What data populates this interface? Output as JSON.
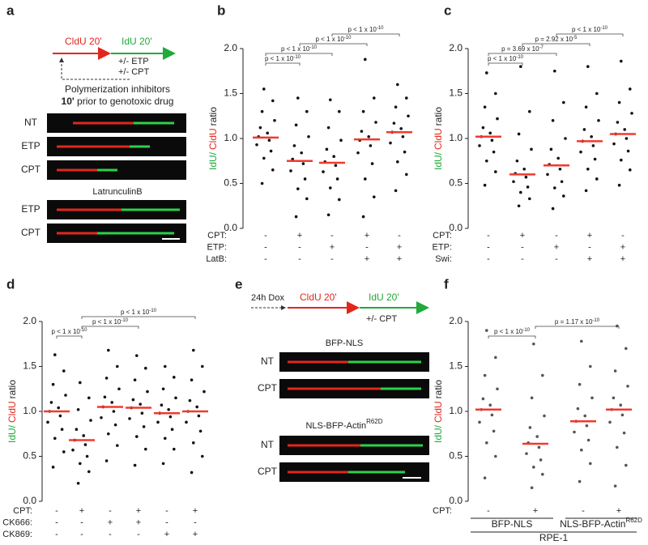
{
  "panel_a": {
    "label": "a",
    "steps": [
      "CldU 20'",
      "IdU 20'"
    ],
    "treatments": [
      "+/- ETP",
      "+/- CPT"
    ],
    "note_line1": "Polymerization inhibitors",
    "note_bold": "10'",
    "note_rest": " prior to genotoxic drug",
    "rows": [
      "NT",
      "ETP",
      "CPT"
    ],
    "subtitle": "LatrunculinB",
    "rows2": [
      "ETP",
      "CPT"
    ]
  },
  "panel_e": {
    "label": "e",
    "dox": "24h Dox",
    "steps": [
      "CldU 20'",
      "IdU 20'"
    ],
    "treatment": "+/- CPT",
    "group1": {
      "title": "BFP-NLS",
      "rows": [
        "NT",
        "CPT"
      ]
    },
    "group2": {
      "title": "NLS-BFP-Actin",
      "sup": "R62D",
      "rows": [
        "NT",
        "CPT"
      ]
    }
  },
  "chart_data": [
    {
      "type": "strip",
      "label": "b",
      "ylabel": [
        "IdU/",
        "CldU",
        "ratio"
      ],
      "ylabel_colors": [
        "#1faa3a",
        "#e3261c",
        "#222222"
      ],
      "median_color": "#f03a2e",
      "point_color": "#111111",
      "ylim": [
        0,
        2
      ],
      "yticks": [
        {
          "value": 0,
          "label": "0.0"
        },
        0.5,
        {
          "value": 1,
          "label": "1.0"
        },
        1.5,
        {
          "value": 2,
          "label": "2.0"
        }
      ],
      "groups": [
        {
          "median": 1.01,
          "points": [
            1.55,
            1.42,
            1.3,
            1.2,
            1.12,
            1.06,
            1.02,
            0.98,
            0.93,
            0.86,
            0.78,
            0.65,
            0.5
          ]
        },
        {
          "median": 0.75,
          "points": [
            1.45,
            1.3,
            1.15,
            1.02,
            0.92,
            0.84,
            0.77,
            0.72,
            0.64,
            0.55,
            0.44,
            0.33,
            0.13
          ]
        },
        {
          "median": 0.73,
          "points": [
            1.43,
            1.3,
            1.12,
            0.98,
            0.88,
            0.8,
            0.74,
            0.7,
            0.63,
            0.55,
            0.45,
            0.32,
            0.15
          ]
        },
        {
          "median": 0.99,
          "points": [
            1.88,
            1.45,
            1.3,
            1.18,
            1.08,
            1.02,
            0.98,
            0.92,
            0.84,
            0.72,
            0.55,
            0.35,
            0.13
          ]
        },
        {
          "median": 1.07,
          "points": [
            1.6,
            1.45,
            1.35,
            1.25,
            1.17,
            1.11,
            1.07,
            1.02,
            0.95,
            0.85,
            0.74,
            0.6,
            0.42
          ]
        }
      ],
      "conditions": [
        {
          "label": "CPT:",
          "values": [
            "-",
            "+",
            "-",
            "+",
            "-"
          ]
        },
        {
          "label": "ETP:",
          "values": [
            "-",
            "-",
            "+",
            "-",
            "+"
          ]
        },
        {
          "label": "LatB:",
          "values": [
            "-",
            "-",
            "-",
            "+",
            "+"
          ]
        }
      ],
      "brackets": [
        {
          "from": 0,
          "to": 1,
          "text": "p < 1 x 10",
          "exp": "-10"
        },
        {
          "from": 0,
          "to": 2,
          "text": "p < 1 x 10",
          "exp": "-10"
        },
        {
          "from": 1,
          "to": 3,
          "text": "p < 1 x 10",
          "exp": "-10"
        },
        {
          "from": 2,
          "to": 4,
          "text": "p < 1 x 10",
          "exp": "-10"
        }
      ]
    },
    {
      "type": "strip",
      "label": "c",
      "ylabel": [
        "IdU/",
        "CldU",
        "ratio"
      ],
      "ylabel_colors": [
        "#1faa3a",
        "#e3261c",
        "#222222"
      ],
      "median_color": "#f03a2e",
      "point_color": "#111111",
      "ylim": [
        0,
        2
      ],
      "yticks": [
        {
          "value": 0,
          "label": "0.0"
        },
        0.5,
        {
          "value": 1,
          "label": "1.0"
        },
        1.5,
        {
          "value": 2,
          "label": "2.0"
        }
      ],
      "groups": [
        {
          "median": 1.02,
          "points": [
            1.73,
            1.5,
            1.35,
            1.22,
            1.12,
            1.06,
            1.02,
            0.98,
            0.92,
            0.85,
            0.75,
            0.63,
            0.48
          ]
        },
        {
          "median": 0.6,
          "points": [
            1.8,
            1.3,
            1.05,
            0.88,
            0.75,
            0.66,
            0.61,
            0.57,
            0.52,
            0.46,
            0.4,
            0.33,
            0.25
          ]
        },
        {
          "median": 0.7,
          "points": [
            1.75,
            1.4,
            1.2,
            1.0,
            0.88,
            0.78,
            0.71,
            0.66,
            0.6,
            0.52,
            0.45,
            0.36,
            0.22
          ]
        },
        {
          "median": 0.97,
          "points": [
            1.8,
            1.5,
            1.35,
            1.2,
            1.1,
            1.02,
            0.97,
            0.92,
            0.85,
            0.77,
            0.66,
            0.55,
            0.42
          ]
        },
        {
          "median": 1.05,
          "points": [
            1.86,
            1.55,
            1.4,
            1.28,
            1.18,
            1.1,
            1.05,
            1.0,
            0.94,
            0.86,
            0.76,
            0.65,
            0.48
          ]
        }
      ],
      "conditions": [
        {
          "label": "CPT:",
          "values": [
            "-",
            "+",
            "-",
            "+",
            "-"
          ]
        },
        {
          "label": "ETP:",
          "values": [
            "-",
            "-",
            "+",
            "-",
            "+"
          ]
        },
        {
          "label": "Swi:",
          "values": [
            "-",
            "-",
            "-",
            "+",
            "+"
          ]
        }
      ],
      "brackets": [
        {
          "from": 0,
          "to": 1,
          "text": "p < 1 x 10",
          "exp": "-10"
        },
        {
          "from": 0,
          "to": 2,
          "text": "p = 3.69 x 10",
          "exp": "-7"
        },
        {
          "from": 1,
          "to": 3,
          "text": "p = 2.92 x 10",
          "exp": "-5"
        },
        {
          "from": 2,
          "to": 4,
          "text": "p < 1 x 10",
          "exp": "-10"
        }
      ]
    },
    {
      "type": "strip",
      "label": "d",
      "ylabel": [
        "IdU/",
        "CldU",
        "ratio"
      ],
      "ylabel_colors": [
        "#1faa3a",
        "#e3261c",
        "#222222"
      ],
      "median_color": "#f03a2e",
      "point_color": "#111111",
      "ylim": [
        0,
        2
      ],
      "yticks": [
        {
          "value": 0,
          "label": "0.0"
        },
        0.5,
        {
          "value": 1,
          "label": "1.0"
        },
        1.5,
        {
          "value": 2,
          "label": "2.0"
        }
      ],
      "groups": [
        {
          "median": 1.0,
          "points": [
            1.63,
            1.45,
            1.3,
            1.18,
            1.1,
            1.04,
            1.0,
            0.95,
            0.88,
            0.8,
            0.7,
            0.55,
            0.38
          ]
        },
        {
          "median": 0.68,
          "points": [
            1.32,
            1.15,
            1.02,
            0.9,
            0.8,
            0.73,
            0.68,
            0.63,
            0.57,
            0.5,
            0.42,
            0.33,
            0.2
          ]
        },
        {
          "median": 1.05,
          "points": [
            1.68,
            1.5,
            1.37,
            1.25,
            1.16,
            1.1,
            1.05,
            1.0,
            0.93,
            0.85,
            0.75,
            0.62,
            0.45
          ]
        },
        {
          "median": 1.04,
          "points": [
            1.62,
            1.48,
            1.35,
            1.22,
            1.13,
            1.08,
            1.04,
            0.98,
            0.92,
            0.83,
            0.72,
            0.58,
            0.4
          ]
        },
        {
          "median": 0.98,
          "points": [
            1.5,
            1.38,
            1.25,
            1.15,
            1.07,
            1.02,
            0.98,
            0.94,
            0.88,
            0.8,
            0.7,
            0.58,
            0.42
          ]
        },
        {
          "median": 1.0,
          "points": [
            1.68,
            1.5,
            1.35,
            1.22,
            1.12,
            1.05,
            1.0,
            0.95,
            0.88,
            0.78,
            0.65,
            0.5,
            0.32
          ]
        }
      ],
      "conditions": [
        {
          "label": "CPT:",
          "values": [
            "-",
            "+",
            "-",
            "+",
            "-",
            "+"
          ]
        },
        {
          "label": "CK666:",
          "values": [
            "-",
            "-",
            "+",
            "+",
            "-",
            "-"
          ]
        },
        {
          "label": "CK869:",
          "values": [
            "-",
            "-",
            "-",
            "-",
            "+",
            "+"
          ]
        }
      ],
      "brackets": [
        {
          "from": 0,
          "to": 1,
          "text": "p < 1 x 10",
          "exp": "-10"
        },
        {
          "from": 1,
          "to": 3,
          "text": "p < 1 x 10",
          "exp": "-10"
        },
        {
          "from": 1,
          "to": 5,
          "text": "p < 1 x 10",
          "exp": "-10"
        }
      ]
    },
    {
      "type": "strip",
      "label": "f",
      "ylabel": [
        "IdU/",
        "CldU",
        "ratio"
      ],
      "ylabel_colors": [
        "#1faa3a",
        "#e3261c",
        "#222222"
      ],
      "median_color": "#f03a2e",
      "point_color": "#555555",
      "ylim": [
        0,
        2
      ],
      "yticks": [
        {
          "value": 0,
          "label": "0.0"
        },
        0.5,
        {
          "value": 1,
          "label": "1.0"
        },
        1.5,
        {
          "value": 2,
          "label": "2.0"
        }
      ],
      "groups": [
        {
          "median": 1.02,
          "points": [
            1.9,
            1.6,
            1.4,
            1.25,
            1.14,
            1.07,
            1.02,
            0.96,
            0.88,
            0.78,
            0.65,
            0.5,
            0.26
          ]
        },
        {
          "median": 0.64,
          "points": [
            1.75,
            1.4,
            1.15,
            0.95,
            0.82,
            0.72,
            0.65,
            0.6,
            0.53,
            0.46,
            0.38,
            0.3,
            0.15
          ]
        },
        {
          "median": 0.89,
          "points": [
            1.78,
            1.5,
            1.3,
            1.15,
            1.03,
            0.95,
            0.89,
            0.84,
            0.77,
            0.68,
            0.57,
            0.42,
            0.22
          ]
        },
        {
          "median": 1.02,
          "points": [
            1.95,
            1.7,
            1.45,
            1.28,
            1.15,
            1.07,
            1.02,
            0.96,
            0.88,
            0.76,
            0.6,
            0.4,
            0.17
          ]
        }
      ],
      "conditions": [
        {
          "label": "CPT:",
          "values": [
            "-",
            "+",
            "-",
            "+"
          ]
        }
      ],
      "brackets": [
        {
          "from": 0,
          "to": 1,
          "text": "p < 1 x 10",
          "exp": "-10"
        },
        {
          "from": 1,
          "to": 3,
          "text": "p = 1.17 x 10",
          "exp": "-10"
        }
      ],
      "group_labels": [
        {
          "text": "BFP-NLS",
          "from": 0,
          "to": 1
        },
        {
          "text": "NLS-BFP-Actin",
          "sup": "R62D",
          "from": 2,
          "to": 3
        }
      ],
      "super_group": {
        "text": "RPE-1",
        "from": 0,
        "to": 3
      }
    }
  ]
}
